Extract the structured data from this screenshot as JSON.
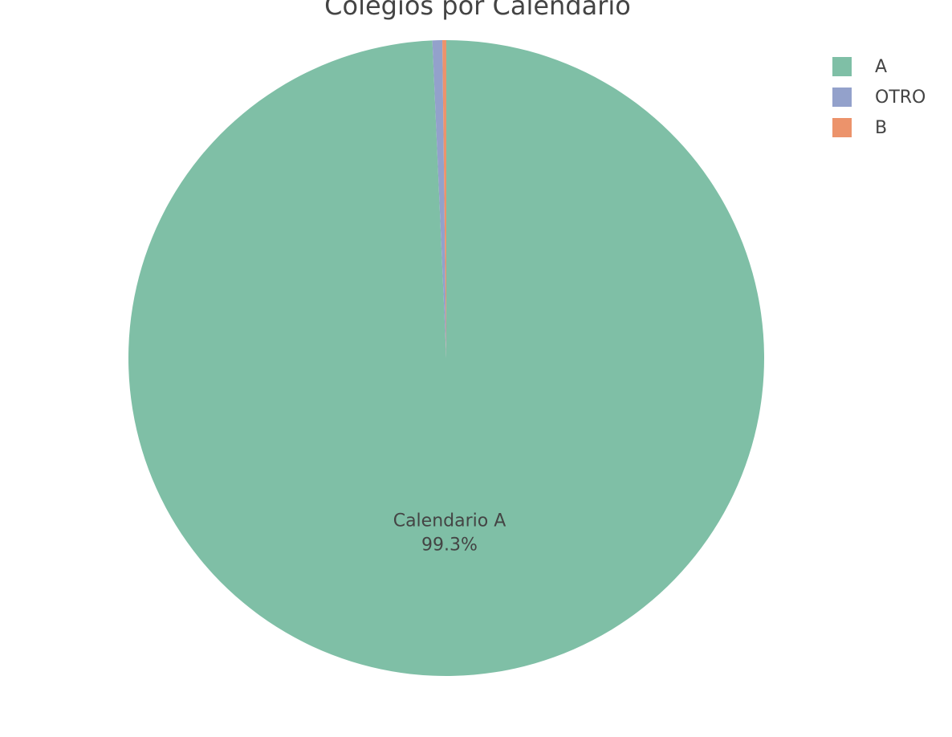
{
  "chart_data": {
    "type": "pie",
    "title": "Colegios por Calendario",
    "slices": [
      {
        "name": "A",
        "text": "Calendario A",
        "percent": 99.3,
        "percent_label": "99.3%",
        "color": "#7fbfa6"
      },
      {
        "name": "OTRO",
        "text": "",
        "percent": 0.5,
        "percent_label": "",
        "color": "#93a1cb"
      },
      {
        "name": "B",
        "text": "",
        "percent": 0.2,
        "percent_label": "",
        "color": "#ec936b"
      }
    ],
    "legend_position": "top-right"
  }
}
